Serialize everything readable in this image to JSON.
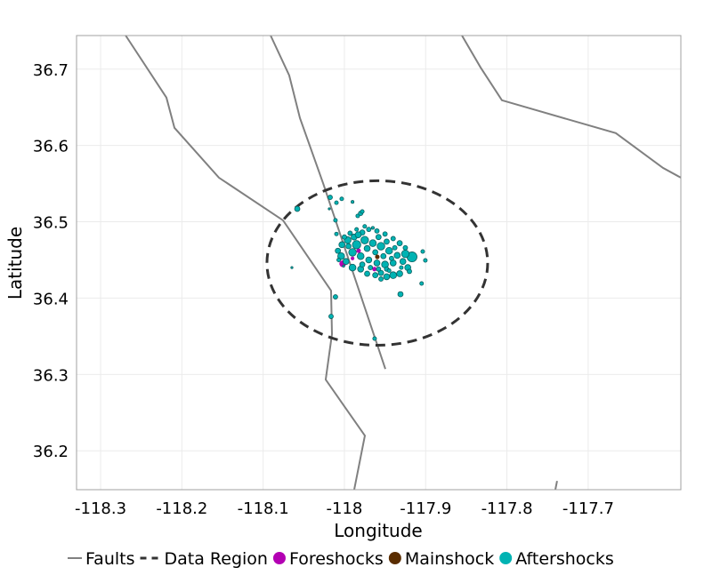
{
  "chart_data": {
    "type": "scatter",
    "xlabel": "Longitude",
    "ylabel": "Latitude",
    "xlim": [
      -118.3296,
      -117.586
    ],
    "ylim": [
      36.149,
      36.744
    ],
    "xticks": [
      -118.3,
      -118.2,
      -118.1,
      -118.0,
      -117.9,
      -117.8,
      -117.7
    ],
    "xtick_labels": [
      "-118.3",
      "-118.2",
      "-118.1",
      "-118",
      "-117.9",
      "-117.8",
      "-117.7"
    ],
    "yticks": [
      36.2,
      36.3,
      36.4,
      36.5,
      36.6,
      36.7
    ],
    "ytick_labels": [
      "36.2",
      "36.3",
      "36.4",
      "36.5",
      "36.6",
      "36.7"
    ],
    "grid": true,
    "legend_position": "bottom",
    "legend": [
      {
        "label": "Faults",
        "kind": "line",
        "color": "#808080"
      },
      {
        "label": "Data Region",
        "kind": "dashed",
        "color": "#333333"
      },
      {
        "label": "Foreshocks",
        "kind": "point",
        "color": "#b300b3"
      },
      {
        "label": "Mainshock",
        "kind": "point",
        "color": "#5a2d00"
      },
      {
        "label": "Aftershocks",
        "kind": "point",
        "color": "#00b3b3"
      }
    ],
    "faults": [
      [
        [
          -118.2693,
          36.7443
        ],
        [
          -118.219,
          36.6627
        ],
        [
          -118.2091,
          36.6231
        ],
        [
          -118.1544,
          36.5578
        ],
        [
          -118.0755,
          36.5019
        ],
        [
          -118.0164,
          36.4098
        ],
        [
          -118.0153,
          36.3527
        ],
        [
          -118.023,
          36.2932
        ],
        [
          -117.9748,
          36.2198
        ],
        [
          -117.988,
          36.1487
        ]
      ],
      [
        [
          -118.0909,
          36.7443
        ],
        [
          -118.0679,
          36.6918
        ],
        [
          -118.0547,
          36.6359
        ],
        [
          -118.0263,
          36.5508
        ],
        [
          -117.9496,
          36.3072
        ]
      ],
      [
        [
          -117.8555,
          36.7443
        ],
        [
          -117.8325,
          36.7023
        ],
        [
          -117.8062,
          36.6592
        ],
        [
          -117.666,
          36.6161
        ],
        [
          -117.608,
          36.5706
        ],
        [
          -117.586,
          36.5578
        ]
      ],
      [
        [
          -117.7383,
          36.1604
        ],
        [
          -117.7405,
          36.1487
        ]
      ]
    ],
    "data_region": {
      "center": [
        -117.9595,
        36.446
      ],
      "radius_lon": 0.1358,
      "radius_lat": 0.1078
    },
    "foreshocks": [
      [
        -118.002,
        36.445,
        3.2
      ],
      [
        -117.9825,
        36.462,
        2.6
      ],
      [
        -117.963,
        36.438,
        2.6
      ],
      [
        -117.99,
        36.452,
        2.4
      ]
    ],
    "mainshock": [
      [
        -117.9595,
        36.454,
        2.6
      ]
    ],
    "aftershocks": [
      [
        -118.058,
        36.517,
        2.8
      ],
      [
        -118.0175,
        36.532,
        2.6
      ],
      [
        -118.0098,
        36.525,
        2.4
      ],
      [
        -118.0033,
        36.53,
        2.4
      ],
      [
        -117.99,
        36.526,
        2.2
      ],
      [
        -118.0186,
        36.517,
        2.0
      ],
      [
        -118.011,
        36.502,
        2.4
      ],
      [
        -118.0098,
        36.484,
        2.4
      ],
      [
        -118.0646,
        36.44,
        2.0
      ],
      [
        -118.001,
        36.442,
        2.0
      ],
      [
        -118.011,
        36.4016,
        2.6
      ],
      [
        -118.0164,
        36.376,
        2.6
      ],
      [
        -117.9628,
        36.3469,
        2.4
      ],
      [
        -117.931,
        36.4051,
        2.8
      ],
      [
        -117.9836,
        36.5077,
        2.4
      ],
      [
        -117.98,
        36.511,
        2.6
      ],
      [
        -117.978,
        36.5135,
        2.4
      ],
      [
        -117.9036,
        36.4611,
        2.4
      ],
      [
        -117.9004,
        36.4494,
        2.4
      ],
      [
        -117.905,
        36.4191,
        2.4
      ],
      [
        -117.9168,
        36.454,
        4.0
      ],
      [
        -117.925,
        36.458,
        3.4
      ],
      [
        -117.928,
        36.448,
        3.0
      ],
      [
        -117.922,
        36.44,
        3.0
      ],
      [
        -117.932,
        36.432,
        3.0
      ],
      [
        -117.94,
        36.43,
        3.2
      ],
      [
        -117.948,
        36.428,
        3.0
      ],
      [
        -117.955,
        36.433,
        2.8
      ],
      [
        -117.962,
        36.43,
        2.8
      ],
      [
        -117.972,
        36.432,
        2.8
      ],
      [
        -117.98,
        36.438,
        3.0
      ],
      [
        -117.99,
        36.44,
        3.2
      ],
      [
        -117.998,
        36.448,
        3.0
      ],
      [
        -118.004,
        36.455,
        3.2
      ],
      [
        -118.008,
        36.462,
        2.8
      ],
      [
        -118.003,
        36.47,
        3.0
      ],
      [
        -117.996,
        36.476,
        3.2
      ],
      [
        -117.988,
        36.48,
        3.0
      ],
      [
        -117.978,
        36.486,
        2.8
      ],
      [
        -117.97,
        36.49,
        2.6
      ],
      [
        -117.96,
        36.488,
        2.6
      ],
      [
        -117.95,
        36.484,
        2.6
      ],
      [
        -117.94,
        36.478,
        2.6
      ],
      [
        -117.932,
        36.472,
        2.8
      ],
      [
        -117.985,
        36.47,
        3.6
      ],
      [
        -117.975,
        36.476,
        3.4
      ],
      [
        -117.965,
        36.472,
        3.2
      ],
      [
        -117.955,
        36.468,
        3.4
      ],
      [
        -117.945,
        36.462,
        3.2
      ],
      [
        -117.935,
        36.456,
        3.0
      ],
      [
        -117.99,
        36.46,
        3.4
      ],
      [
        -117.98,
        36.455,
        3.2
      ],
      [
        -117.97,
        36.45,
        3.0
      ],
      [
        -117.96,
        36.446,
        3.0
      ],
      [
        -117.95,
        36.444,
        3.2
      ],
      [
        -117.94,
        36.446,
        3.0
      ],
      [
        -117.995,
        36.468,
        2.8
      ],
      [
        -117.972,
        36.465,
        3.0
      ],
      [
        -117.962,
        36.46,
        2.8
      ],
      [
        -117.952,
        36.455,
        2.8
      ],
      [
        -117.942,
        36.452,
        2.6
      ],
      [
        -117.978,
        36.444,
        2.8
      ],
      [
        -117.968,
        36.44,
        2.6
      ],
      [
        -117.958,
        36.438,
        2.6
      ],
      [
        -117.948,
        36.438,
        2.6
      ],
      [
        -117.985,
        36.49,
        2.4
      ],
      [
        -117.975,
        36.494,
        2.4
      ],
      [
        -117.965,
        36.492,
        2.2
      ],
      [
        -118.0,
        36.48,
        2.6
      ],
      [
        -117.925,
        36.466,
        2.6
      ],
      [
        -117.92,
        36.435,
        2.6
      ],
      [
        -117.93,
        36.44,
        2.4
      ],
      [
        -117.955,
        36.425,
        2.6
      ],
      [
        -117.945,
        36.436,
        2.4
      ],
      [
        -118.007,
        36.45,
        2.4
      ],
      [
        -117.983,
        36.483,
        3.0
      ],
      [
        -117.993,
        36.485,
        2.6
      ],
      [
        -117.958,
        36.48,
        2.8
      ],
      [
        -117.948,
        36.474,
        2.8
      ],
      [
        -117.938,
        36.466,
        2.6
      ]
    ]
  }
}
